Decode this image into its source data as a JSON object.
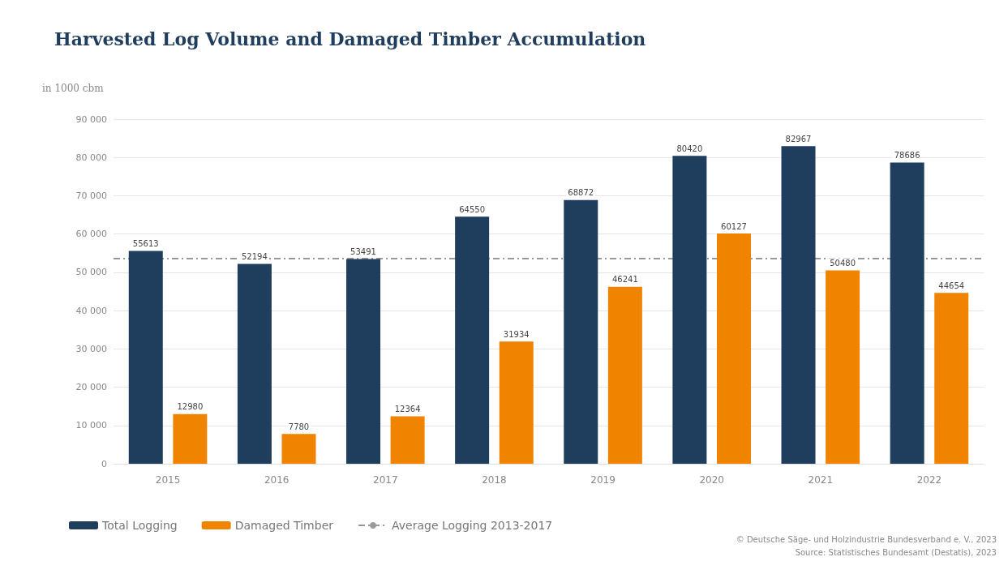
{
  "chart_data": {
    "type": "bar",
    "title": "Harvested Log Volume and Damaged Timber Accumulation",
    "ylabel": "in 1000 cbm",
    "categories": [
      "2015",
      "2016",
      "2017",
      "2018",
      "2019",
      "2020",
      "2021",
      "2022"
    ],
    "series": [
      {
        "name": "Total Logging",
        "color": "#1f3d5c",
        "values": [
          55613,
          52194,
          53491,
          64550,
          68872,
          80420,
          82967,
          78686
        ]
      },
      {
        "name": "Damaged Timber",
        "color": "#f08300",
        "values": [
          12980,
          7780,
          12364,
          31934,
          46241,
          60127,
          50480,
          44654
        ]
      }
    ],
    "ylim": [
      0,
      90000
    ],
    "yticks": [
      0,
      {
        "value": 10000,
        "label": "10 000"
      },
      {
        "value": 20000,
        "label": "20 000"
      },
      {
        "value": 30000,
        "label": "30 000"
      },
      {
        "value": 40000,
        "label": "40 000"
      },
      {
        "value": 50000,
        "label": "50 000"
      },
      {
        "value": 60000,
        "label": "60 000"
      },
      {
        "value": 70000,
        "label": "70 000"
      },
      {
        "value": 80000,
        "label": "80 000"
      },
      {
        "value": 90000,
        "label": "90 000"
      }
    ],
    "ref_lines": [
      {
        "axis": "y",
        "value": 53700,
        "label": "Average Logging 2013-2017",
        "color": "#999999",
        "line_style": "dashed"
      }
    ],
    "data_labels": true,
    "grid": "y",
    "legend": "bottom left",
    "annotations": [
      "© Deutsche Säge- und Holzindustrie Bundesverband e. V., 2023",
      "Source: Statistisches Bundesamt (Destatis), 2023"
    ]
  }
}
